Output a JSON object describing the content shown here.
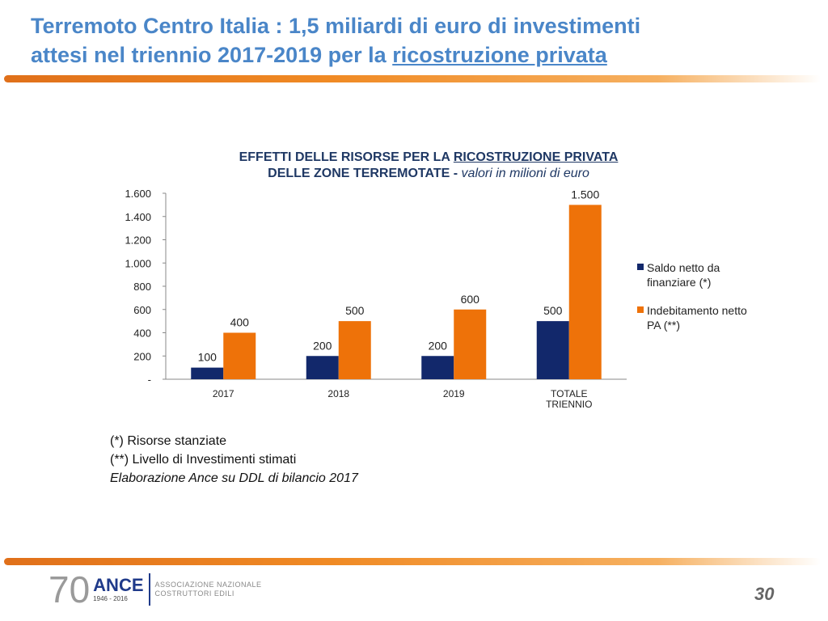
{
  "slide": {
    "title_line1": "Terremoto Centro Italia :  1,5 miliardi di euro di investimenti",
    "title_line2_pre": "attesi nel triennio 2017-2019 per la ",
    "title_line2_underlined": "ricostruzione privata",
    "page_number": "30",
    "logo": {
      "number": "70",
      "brand": "ANCE",
      "years": "1946 - 2016",
      "line1": "ASSOCIAZIONE NAZIONALE",
      "line2": "COSTRUTTORI EDILI"
    },
    "notes": [
      "(*) Risorse stanziate",
      "(**) Livello di Investimenti stimati"
    ],
    "source": "Elaborazione Ance su DDL di bilancio 2017"
  },
  "chart_data": {
    "type": "bar",
    "title_pre": "EFFETTI DELLE RISORSE PER LA ",
    "title_underlined": "RICOSTRUZIONE PRIVATA",
    "title_line2": "DELLE ZONE TERREMOTATE - ",
    "subtitle": "valori in milioni di euro",
    "categories": [
      "2017",
      "2018",
      "2019",
      "TOTALE TRIENNIO"
    ],
    "series": [
      {
        "name": "Saldo netto da finanziare (*)",
        "color": "#12286b",
        "values": [
          100,
          200,
          200,
          500
        ],
        "labels": [
          "100",
          "200",
          "200",
          "500"
        ]
      },
      {
        "name": "Indebitamento netto PA (**)",
        "color": "#ee7209",
        "values": [
          400,
          500,
          600,
          1500
        ],
        "labels": [
          "400",
          "500",
          "600",
          "1.500"
        ]
      }
    ],
    "yticks": [
      0,
      200,
      400,
      600,
      800,
      1000,
      1200,
      1400,
      1600
    ],
    "ytick_labels": [
      "-",
      "200",
      "400",
      "600",
      "800",
      "1.000",
      "1.200",
      "1.400",
      "1.600"
    ],
    "ylim": [
      0,
      1600
    ],
    "grid": false,
    "legend": "right"
  }
}
